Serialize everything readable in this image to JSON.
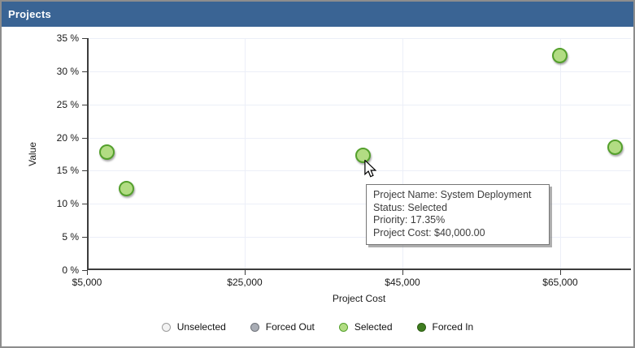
{
  "panel": {
    "title": "Projects"
  },
  "chart_data": {
    "type": "scatter",
    "title": "Projects",
    "xlabel": "Project Cost",
    "ylabel": "Value",
    "xlim": [
      5000,
      74000
    ],
    "ylim": [
      0,
      35
    ],
    "grid": true,
    "x_ticks": [
      5000,
      25000,
      45000,
      65000
    ],
    "x_tick_labels": [
      "$5,000",
      "$25,000",
      "$45,000",
      "$65,000"
    ],
    "y_ticks": [
      0,
      5,
      10,
      15,
      20,
      25,
      30,
      35
    ],
    "y_tick_labels": [
      "0 %",
      "5 %",
      "10 %",
      "15 %",
      "20 %",
      "25 %",
      "30 %",
      "35 %"
    ],
    "series": [
      {
        "name": "Selected",
        "points": [
          {
            "cost": 7500,
            "value": 17.8,
            "status": "Selected"
          },
          {
            "cost": 10000,
            "value": 12.3,
            "status": "Selected"
          },
          {
            "cost": 40000,
            "value": 17.35,
            "status": "Selected"
          },
          {
            "cost": 65000,
            "value": 32.4,
            "status": "Selected"
          },
          {
            "cost": 72000,
            "value": 18.5,
            "status": "Selected"
          }
        ]
      }
    ],
    "legend_position": "bottom"
  },
  "tooltip": {
    "lines": [
      "Project Name: System Deployment",
      "Status: Selected",
      "Priority: 17.35%",
      "Project Cost: $40,000.00"
    ]
  },
  "legend": {
    "items": [
      {
        "label": "Unselected",
        "fill": "#f3f3f3",
        "border": "#9c9c9c"
      },
      {
        "label": "Forced Out",
        "fill": "#a9adb5",
        "border": "#6f737a"
      },
      {
        "label": "Selected",
        "fill": "#b2dc83",
        "border": "#54a02c"
      },
      {
        "label": "Forced In",
        "fill": "#3f7d20",
        "border": "#2c5c12"
      }
    ]
  },
  "colors": {
    "titlebar_bg": "#3a6494",
    "titlebar_text": "#ffffff",
    "axis": "#3c3c3c",
    "grid": "#ecEff8",
    "selected_fill": "#b2dc83",
    "selected_border": "#54a02c",
    "panel_border": "#8d8d8d"
  }
}
